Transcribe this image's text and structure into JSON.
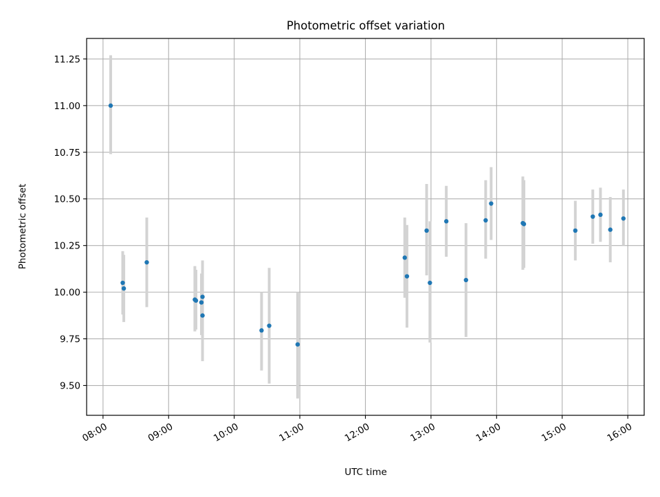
{
  "chart_data": {
    "type": "scatter",
    "title": "Photometric offset variation",
    "xlabel": "UTC time",
    "ylabel": "Photometric offset",
    "x_unit": "time of day (HH:MM, UTC)",
    "xlim": [
      "07:45",
      "16:15"
    ],
    "ylim": [
      9.34,
      11.36
    ],
    "x_ticks": [
      "08:00",
      "09:00",
      "10:00",
      "11:00",
      "12:00",
      "13:00",
      "14:00",
      "15:00",
      "16:00"
    ],
    "y_ticks": [
      "9.50",
      "9.75",
      "10.00",
      "10.25",
      "10.50",
      "10.75",
      "11.00",
      "11.25"
    ],
    "grid": true,
    "legend": false,
    "colors": {
      "marker": "#1f77b4",
      "errorbar": "#d3d3d3",
      "grid": "#b0b0b0"
    },
    "series": [
      {
        "points": [
          {
            "x": "08:07",
            "y": 11.0,
            "ylow": 10.74,
            "yhigh": 11.27
          },
          {
            "x": "08:18",
            "y": 10.05,
            "ylow": 9.88,
            "yhigh": 10.22
          },
          {
            "x": "08:19",
            "y": 10.02,
            "ylow": 9.84,
            "yhigh": 10.2
          },
          {
            "x": "08:40",
            "y": 10.16,
            "ylow": 9.92,
            "yhigh": 10.4
          },
          {
            "x": "09:24",
            "y": 9.96,
            "ylow": 9.79,
            "yhigh": 10.14
          },
          {
            "x": "09:25",
            "y": 9.955,
            "ylow": 9.8,
            "yhigh": 10.12
          },
          {
            "x": "09:30",
            "y": 9.945,
            "ylow": 9.77,
            "yhigh": 10.1
          },
          {
            "x": "09:31",
            "y": 9.875,
            "ylow": 9.63,
            "yhigh": 10.12
          },
          {
            "x": "09:31",
            "y": 9.975,
            "ylow": 9.78,
            "yhigh": 10.17
          },
          {
            "x": "10:25",
            "y": 9.795,
            "ylow": 9.58,
            "yhigh": 10.0
          },
          {
            "x": "10:32",
            "y": 9.82,
            "ylow": 9.51,
            "yhigh": 10.13
          },
          {
            "x": "10:58",
            "y": 9.72,
            "ylow": 9.43,
            "yhigh": 10.0
          },
          {
            "x": "12:36",
            "y": 10.185,
            "ylow": 9.97,
            "yhigh": 10.4
          },
          {
            "x": "12:38",
            "y": 10.085,
            "ylow": 9.81,
            "yhigh": 10.36
          },
          {
            "x": "12:56",
            "y": 10.33,
            "ylow": 10.09,
            "yhigh": 10.58
          },
          {
            "x": "12:59",
            "y": 10.05,
            "ylow": 9.73,
            "yhigh": 10.38
          },
          {
            "x": "13:14",
            "y": 10.38,
            "ylow": 10.19,
            "yhigh": 10.57
          },
          {
            "x": "13:32",
            "y": 10.065,
            "ylow": 9.76,
            "yhigh": 10.37
          },
          {
            "x": "13:50",
            "y": 10.385,
            "ylow": 10.18,
            "yhigh": 10.6
          },
          {
            "x": "13:55",
            "y": 10.475,
            "ylow": 10.28,
            "yhigh": 10.67
          },
          {
            "x": "14:24",
            "y": 10.37,
            "ylow": 10.12,
            "yhigh": 10.62
          },
          {
            "x": "14:25",
            "y": 10.365,
            "ylow": 10.13,
            "yhigh": 10.6
          },
          {
            "x": "15:12",
            "y": 10.33,
            "ylow": 10.17,
            "yhigh": 10.49
          },
          {
            "x": "15:28",
            "y": 10.405,
            "ylow": 10.26,
            "yhigh": 10.55
          },
          {
            "x": "15:35",
            "y": 10.415,
            "ylow": 10.27,
            "yhigh": 10.56
          },
          {
            "x": "15:44",
            "y": 10.335,
            "ylow": 10.16,
            "yhigh": 10.51
          },
          {
            "x": "15:56",
            "y": 10.395,
            "ylow": 10.25,
            "yhigh": 10.55
          }
        ]
      }
    ]
  }
}
